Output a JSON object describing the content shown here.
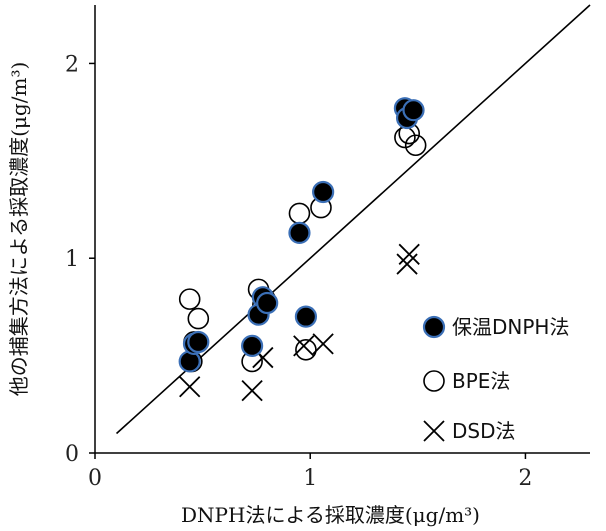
{
  "chart_data": {
    "type": "scatter",
    "xlabel": "DNPH法による採取濃度(μg/m³)",
    "ylabel": "他の捕集方法による採取濃度(μg/m³)",
    "xlim": [
      0,
      2.3
    ],
    "ylim": [
      0,
      2.3
    ],
    "x_ticks": [
      "0",
      "1",
      "2"
    ],
    "y_ticks": [
      "0",
      "1",
      "2"
    ],
    "reference_line": {
      "from": [
        0.1,
        0.1
      ],
      "to": [
        2.3,
        2.3
      ]
    },
    "legend_position": "right",
    "series": [
      {
        "name": "保温DNPH法",
        "marker": "filled-circle",
        "color": "#000000",
        "edge_color": "#3b6fb6",
        "points": [
          [
            0.44,
            0.47
          ],
          [
            0.46,
            0.56
          ],
          [
            0.48,
            0.57
          ],
          [
            0.73,
            0.55
          ],
          [
            0.76,
            0.71
          ],
          [
            0.78,
            0.8
          ],
          [
            0.8,
            0.77
          ],
          [
            0.95,
            1.13
          ],
          [
            0.98,
            0.7
          ],
          [
            1.06,
            1.34
          ],
          [
            1.44,
            1.77
          ],
          [
            1.45,
            1.72
          ],
          [
            1.48,
            1.76
          ]
        ]
      },
      {
        "name": "BPE法",
        "marker": "open-circle",
        "color": "#000000",
        "points": [
          [
            0.44,
            0.79
          ],
          [
            0.45,
            0.47
          ],
          [
            0.46,
            0.57
          ],
          [
            0.48,
            0.69
          ],
          [
            0.73,
            0.47
          ],
          [
            0.76,
            0.84
          ],
          [
            0.78,
            0.76
          ],
          [
            0.79,
            0.79
          ],
          [
            0.95,
            1.23
          ],
          [
            0.98,
            0.53
          ],
          [
            1.05,
            1.26
          ],
          [
            1.44,
            1.62
          ],
          [
            1.46,
            1.64
          ],
          [
            1.49,
            1.58
          ]
        ]
      },
      {
        "name": "DSD法",
        "marker": "cross",
        "color": "#000000",
        "points": [
          [
            0.44,
            0.34
          ],
          [
            0.73,
            0.32
          ],
          [
            0.78,
            0.49
          ],
          [
            0.97,
            0.55
          ],
          [
            1.06,
            0.56
          ],
          [
            1.45,
            0.97
          ],
          [
            1.46,
            1.02
          ]
        ]
      }
    ]
  }
}
